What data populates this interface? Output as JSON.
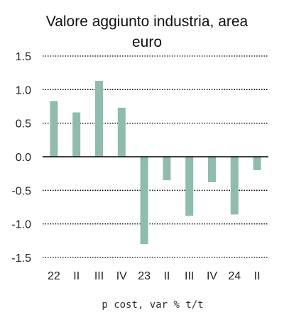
{
  "chart_data": {
    "type": "bar",
    "title_lines": [
      "Valore aggiunto industria, area",
      "euro"
    ],
    "xlabel": "p cost, var % t/t",
    "ylabel": "",
    "categories": [
      "22",
      "II",
      "III",
      "IV",
      "23",
      "II",
      "III",
      "IV",
      "24",
      "II"
    ],
    "values": [
      0.83,
      0.66,
      1.13,
      0.73,
      -1.3,
      -0.35,
      -0.88,
      -0.38,
      -0.86,
      -0.2
    ],
    "ylim": [
      -1.5,
      1.5
    ],
    "yticks": [
      1.5,
      1.0,
      0.5,
      0.0,
      -0.5,
      -1.0,
      -1.5
    ],
    "ytick_labels": [
      "1.5",
      "1.0",
      "0.5",
      "0.0",
      "-0.5",
      "-1.0",
      "-1.5"
    ],
    "grid": "horizontal dotted",
    "bar_color": "#8fbcad",
    "grid_color": "#000000"
  }
}
